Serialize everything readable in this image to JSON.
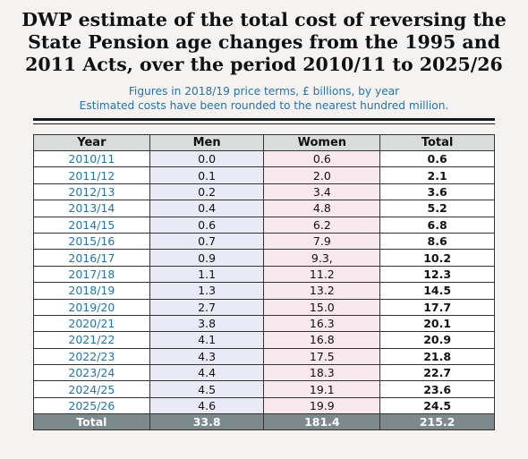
{
  "title": {
    "line1": "DWP estimate of the total cost of reversing the",
    "line2": "State Pension age changes from the 1995 and",
    "line3": "2011 Acts, over the period 2010/11 to 2025/26"
  },
  "subtitle": {
    "line1": "Figures in 2018/19 price terms, £ billions, by year",
    "line2": "Estimated costs have been rounded to the nearest hundred million."
  },
  "table": {
    "headers": [
      "Year",
      "Men",
      "Women",
      "Total"
    ],
    "rows": [
      [
        "2010/11",
        "0.0",
        "0.6",
        "0.6"
      ],
      [
        "2011/12",
        "0.1",
        "2.0",
        "2.1"
      ],
      [
        "2012/13",
        "0.2",
        "3.4",
        "3.6"
      ],
      [
        "2013/14",
        "0.4",
        "4.8",
        "5.2"
      ],
      [
        "2014/15",
        "0.6",
        "6.2",
        "6.8"
      ],
      [
        "2015/16",
        "0.7",
        "7.9",
        "8.6"
      ],
      [
        "2016/17",
        "0.9",
        "9.3,",
        "10.2"
      ],
      [
        "2017/18",
        "1.1",
        "11.2",
        "12.3"
      ],
      [
        "2018/19",
        "1.3",
        "13.2",
        "14.5"
      ],
      [
        "2019/20",
        "2.7",
        "15.0",
        "17.7"
      ],
      [
        "2020/21",
        "3.8",
        "16.3",
        "20.1"
      ],
      [
        "2021/22",
        "4.1",
        "16.8",
        "20.9"
      ],
      [
        "2022/23",
        "4.3",
        "17.5",
        "21.8"
      ],
      [
        "2023/24",
        "4.4",
        "18.3",
        "22.7"
      ],
      [
        "2024/25",
        "4.5",
        "19.1",
        "23.6"
      ],
      [
        "2025/26",
        "4.6",
        "19.9",
        "24.5"
      ]
    ],
    "total_row": [
      "Total",
      "33.8",
      "181.4",
      "215.2"
    ]
  },
  "colors": {
    "year_text": "#2574a9",
    "men_bg": "#e9eaf6",
    "women_bg": "#f9e9ee",
    "header_bg": "#d9dcdb",
    "total_row_bg": "#7d8a8d"
  }
}
